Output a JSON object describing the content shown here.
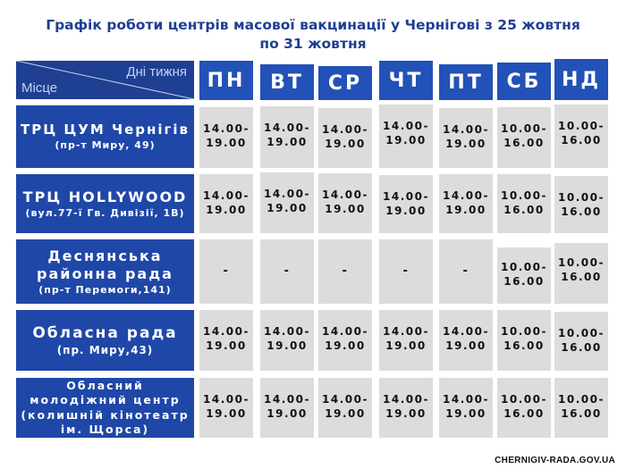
{
  "title": {
    "line1": "Графік роботи центрів масової вакцинації у  Чернігові з 25 жовтня",
    "line2": "по 31 жовтня"
  },
  "corner": {
    "days_label": "Дні тижня",
    "place_label": "Місце"
  },
  "days": [
    "ПН",
    "ВТ",
    "СР",
    "ЧТ",
    "ПТ",
    "СБ",
    "НД"
  ],
  "places": [
    {
      "name_lines": [
        "ТРЦ ЦУМ Чернігів"
      ],
      "address": "(пр-т Миру, 49)",
      "hours": [
        [
          "14.00-",
          "19.00"
        ],
        [
          "14.00-",
          "19.00"
        ],
        [
          "14.00-",
          "19.00"
        ],
        [
          "14.00-",
          "19.00"
        ],
        [
          "14.00-",
          "19.00"
        ],
        [
          "10.00-",
          "16.00"
        ],
        [
          "10.00-",
          "16.00"
        ]
      ]
    },
    {
      "name_lines": [
        "ТРЦ HOLLYWOOD"
      ],
      "address": "(вул.77-ї Гв. Дивізії, 1В)",
      "hours": [
        [
          "14.00-",
          "19.00"
        ],
        [
          "14.00-",
          "19.00"
        ],
        [
          "14.00-",
          "19.00"
        ],
        [
          "14.00-",
          "19.00"
        ],
        [
          "14.00-",
          "19.00"
        ],
        [
          "10.00-",
          "16.00"
        ],
        [
          "10.00-",
          "16.00"
        ]
      ]
    },
    {
      "name_lines": [
        "Деснянська",
        "районна рада"
      ],
      "address": "(пр-т Перемоги,141)",
      "hours": [
        [
          "-"
        ],
        [
          "-"
        ],
        [
          "-"
        ],
        [
          "-"
        ],
        [
          "-"
        ],
        [
          "10.00-",
          "16.00"
        ],
        [
          "10.00-",
          "16.00"
        ]
      ]
    },
    {
      "name_lines": [
        "Обласна рада"
      ],
      "address": "(пр. Миру,43)",
      "hours": [
        [
          "14.00-",
          "19.00"
        ],
        [
          "14.00-",
          "19.00"
        ],
        [
          "14.00-",
          "19.00"
        ],
        [
          "14.00-",
          "19.00"
        ],
        [
          "14.00-",
          "19.00"
        ],
        [
          "10.00-",
          "16.00"
        ],
        [
          "10.00-",
          "16.00"
        ]
      ]
    },
    {
      "name_lines": [
        "Обласний",
        "молодіжний центр",
        "(колишній кінотеатр",
        "ім. Щорса)"
      ],
      "address": "",
      "hours": [
        [
          "14.00-",
          "19.00"
        ],
        [
          "14.00-",
          "19.00"
        ],
        [
          "14.00-",
          "19.00"
        ],
        [
          "14.00-",
          "19.00"
        ],
        [
          "14.00-",
          "19.00"
        ],
        [
          "10.00-",
          "16.00"
        ],
        [
          "10.00-",
          "16.00"
        ]
      ]
    }
  ],
  "footer": "CHERNIGIV-RADA.GOV.UA"
}
